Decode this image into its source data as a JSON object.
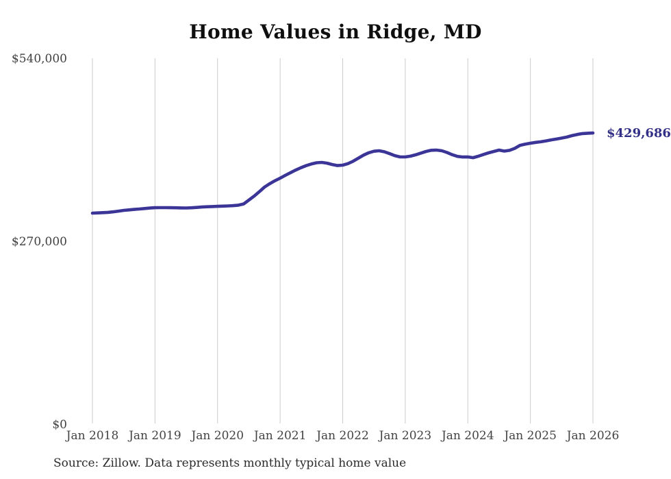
{
  "title": "Home Values in Ridge, MD",
  "source_note": "Source: Zillow. Data represents monthly typical home value",
  "latest_value_label": "$429,686",
  "colors": {
    "line": "#3a3596",
    "end_label": "#322f86",
    "gridline": "#cbcbcb",
    "tick_label": "#3f3f3f",
    "title": "#0f0f0f",
    "background": "#ffffff"
  },
  "chart_data": {
    "type": "line",
    "title": "Home Values in Ridge, MD",
    "ylabel": "",
    "xlabel": "",
    "ylim": [
      0,
      540000
    ],
    "grid": "vertical-only",
    "legend": "none",
    "y_ticks": [
      {
        "label": "$540,000",
        "value": 540000
      },
      {
        "label": "$270,000",
        "value": 270000
      },
      {
        "label": "$0",
        "value": 0
      }
    ],
    "x_ticks": [
      {
        "label": "Jan 2018",
        "month_index": 0
      },
      {
        "label": "Jan 2019",
        "month_index": 12
      },
      {
        "label": "Jan 2020",
        "month_index": 24
      },
      {
        "label": "Jan 2021",
        "month_index": 36
      },
      {
        "label": "Jan 2022",
        "month_index": 48
      },
      {
        "label": "Jan 2023",
        "month_index": 60
      },
      {
        "label": "Jan 2024",
        "month_index": 72
      },
      {
        "label": "Jan 2025",
        "month_index": 84
      },
      {
        "label": "Jan 2026",
        "month_index": 96
      }
    ],
    "series": [
      {
        "name": "Typical home value",
        "final_value": 429686,
        "final_label": "$429,686",
        "months": [
          "2018-01",
          "2018-02",
          "2018-03",
          "2018-04",
          "2018-05",
          "2018-06",
          "2018-07",
          "2018-08",
          "2018-09",
          "2018-10",
          "2018-11",
          "2018-12",
          "2019-01",
          "2019-02",
          "2019-03",
          "2019-04",
          "2019-05",
          "2019-06",
          "2019-07",
          "2019-08",
          "2019-09",
          "2019-10",
          "2019-11",
          "2019-12",
          "2020-01",
          "2020-02",
          "2020-03",
          "2020-04",
          "2020-05",
          "2020-06",
          "2020-07",
          "2020-08",
          "2020-09",
          "2020-10",
          "2020-11",
          "2020-12",
          "2021-01",
          "2021-02",
          "2021-03",
          "2021-04",
          "2021-05",
          "2021-06",
          "2021-07",
          "2021-08",
          "2021-09",
          "2021-10",
          "2021-11",
          "2021-12",
          "2022-01",
          "2022-02",
          "2022-03",
          "2022-04",
          "2022-05",
          "2022-06",
          "2022-07",
          "2022-08",
          "2022-09",
          "2022-10",
          "2022-11",
          "2022-12",
          "2023-01",
          "2023-02",
          "2023-03",
          "2023-04",
          "2023-05",
          "2023-06",
          "2023-07",
          "2023-08",
          "2023-09",
          "2023-10",
          "2023-11",
          "2023-12",
          "2024-01",
          "2024-02",
          "2024-03",
          "2024-04",
          "2024-05",
          "2024-06",
          "2024-07",
          "2024-08",
          "2024-09",
          "2024-10",
          "2024-11",
          "2024-12",
          "2025-01",
          "2025-02",
          "2025-03",
          "2025-04",
          "2025-05",
          "2025-06",
          "2025-07",
          "2025-08",
          "2025-09",
          "2025-10",
          "2025-11",
          "2025-12",
          "2026-01"
        ],
        "values": [
          311500,
          311800,
          312200,
          312600,
          313400,
          314400,
          315500,
          316200,
          316900,
          317500,
          318200,
          318900,
          319500,
          319600,
          319600,
          319500,
          319300,
          319100,
          319000,
          319300,
          319900,
          320500,
          320900,
          321200,
          321500,
          321800,
          322100,
          322500,
          323200,
          325000,
          330700,
          336500,
          343000,
          349900,
          354800,
          359200,
          363000,
          367200,
          371200,
          375100,
          378500,
          381500,
          384000,
          385800,
          386300,
          385200,
          383200,
          381600,
          382200,
          384500,
          388000,
          392500,
          397000,
          400500,
          402800,
          403500,
          402000,
          399200,
          396300,
          394400,
          394400,
          395500,
          397500,
          400000,
          402500,
          404200,
          404500,
          403500,
          401000,
          397700,
          395200,
          394300,
          394400,
          393300,
          395400,
          398000,
          400400,
          402500,
          404500,
          403000,
          404100,
          407000,
          411500,
          413200,
          414600,
          415800,
          416700,
          418000,
          419600,
          420800,
          422200,
          423700,
          425800,
          427600,
          428900,
          429400,
          429686
        ]
      }
    ],
    "source": "Source: Zillow. Data represents monthly typical home value"
  }
}
